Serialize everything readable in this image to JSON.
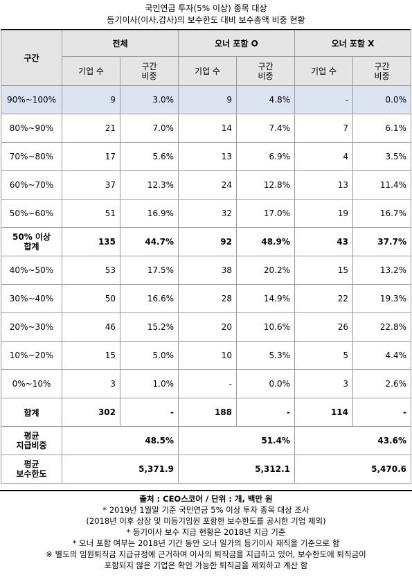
{
  "title": {
    "line1": "국민연금 투자(5% 이상) 종목 대상",
    "line2": "등기이사(이사.감사)의 보수한도 대비 보수총액 비중 현황"
  },
  "header": {
    "range_label": "구간",
    "groups": [
      "전체",
      "오너 포함 O",
      "오너 포함 X"
    ],
    "sub_count": "기업 수",
    "sub_share_line1": "구간",
    "sub_share_line2": "비중"
  },
  "rows": [
    {
      "label": "90%~100%",
      "v": [
        "9",
        "3.0%",
        "9",
        "4.8%",
        "-",
        "0.0%"
      ]
    },
    {
      "label": "80%~90%",
      "v": [
        "21",
        "7.0%",
        "14",
        "7.4%",
        "7",
        "6.1%"
      ]
    },
    {
      "label": "70%~80%",
      "v": [
        "17",
        "5.6%",
        "13",
        "6.9%",
        "4",
        "3.5%"
      ]
    },
    {
      "label": "60%~70%",
      "v": [
        "37",
        "12.3%",
        "24",
        "12.8%",
        "13",
        "11.4%"
      ]
    },
    {
      "label": "50%~60%",
      "v": [
        "51",
        "16.9%",
        "32",
        "17.0%",
        "19",
        "16.7%"
      ]
    },
    {
      "label1": "50% 이상",
      "label2": "합계",
      "v": [
        "135",
        "44.7%",
        "92",
        "48.9%",
        "43",
        "37.7%"
      ]
    },
    {
      "label": "40%~50%",
      "v": [
        "53",
        "17.5%",
        "38",
        "20.2%",
        "15",
        "13.2%"
      ]
    },
    {
      "label": "30%~40%",
      "v": [
        "50",
        "16.6%",
        "28",
        "14.9%",
        "22",
        "19.3%"
      ]
    },
    {
      "label": "20%~30%",
      "v": [
        "46",
        "15.2%",
        "20",
        "10.6%",
        "26",
        "22.8%"
      ]
    },
    {
      "label": "10%~20%",
      "v": [
        "15",
        "5.0%",
        "10",
        "5.3%",
        "5",
        "4.4%"
      ]
    },
    {
      "label": "0%~10%",
      "v": [
        "3",
        "1.0%",
        "-",
        "0.0%",
        "3",
        "2.6%"
      ]
    }
  ],
  "total": {
    "label": "합계",
    "v": [
      "302",
      "-",
      "188",
      "-",
      "114",
      "-"
    ]
  },
  "avg_share": {
    "label1": "평균",
    "label2": "지급비중",
    "v": [
      "48.5%",
      "51.4%",
      "43.6%"
    ]
  },
  "avg_limit": {
    "label1": "평균",
    "label2": "보수한도",
    "v": [
      "5,371.9",
      "5,312.1",
      "5,470.6"
    ]
  },
  "notes": [
    "출처 : CEO스코어 / 단위 : 개, 백만 원",
    "* 2019년 1월말 기준 국민연금 5% 이상 투자 종목 대상 조사",
    "(2018년 이후 상장 및 미등기임원 포함한 보수한도를 공시한 기업 제외)",
    "* 등기이사 보수 지급 현황은 2018년 지급 기준",
    "* 오너 포함 여부는 2018년 기간 동안 오너 일가의 등기이사 재직을 기준으로 함",
    "※ 별도의 임원퇴직금 지급규정에 근거하여 이사의 퇴직금을 지급하고 있어, 보수한도에 퇴직금이",
    "포함되지 않은 기업은 확인 가능한 퇴직금을 제외하고 계산 함"
  ]
}
